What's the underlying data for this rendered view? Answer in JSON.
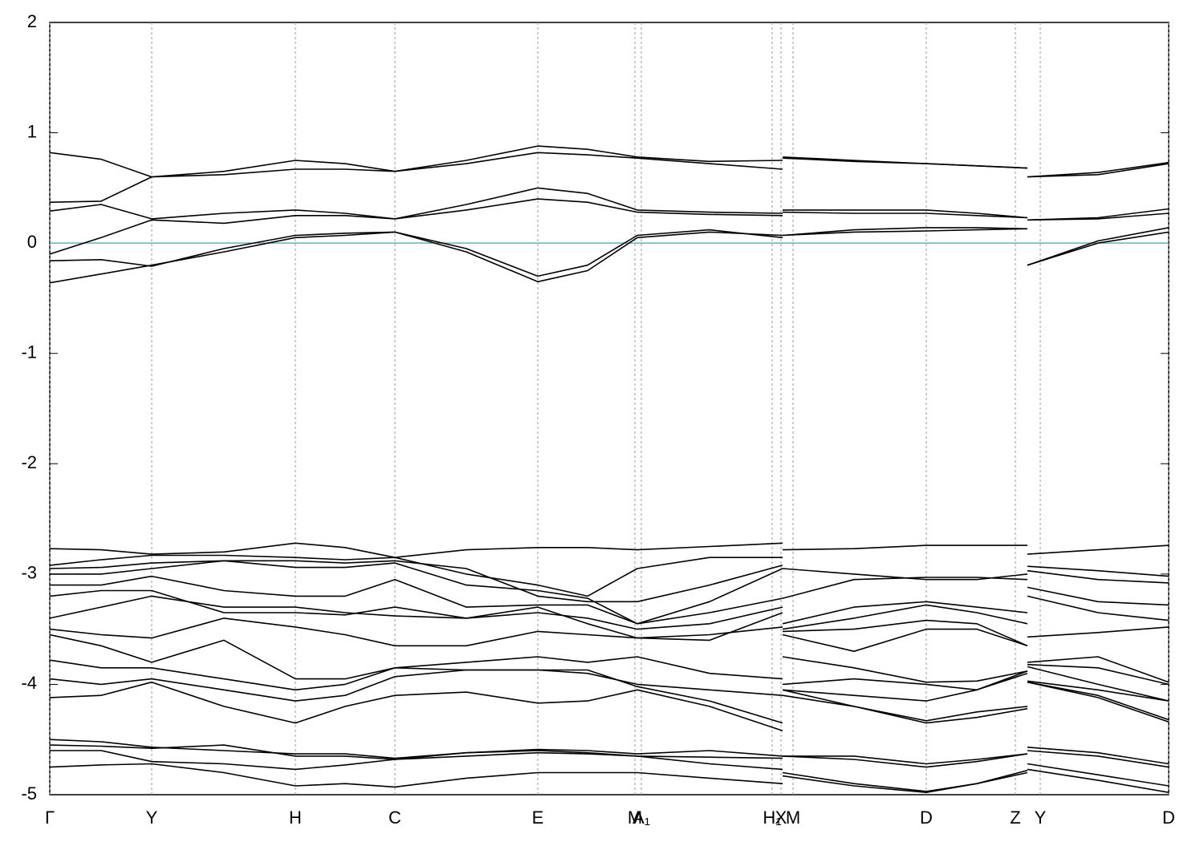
{
  "chart_data": {
    "type": "line",
    "color": "#000000",
    "fermi_level": 0,
    "fermi_color": "#5ab4c8",
    "x": [
      0,
      64,
      127,
      217,
      306,
      368,
      430,
      519,
      608,
      670,
      732,
      822,
      913,
      913,
      913,
      1002,
      1092,
      1155,
      1218,
      1218,
      1218,
      1306,
      1394
    ],
    "xlim": [
      0,
      1394
    ],
    "xticks": [
      {
        "value": 0,
        "label": "Γ"
      },
      {
        "value": 127,
        "label": "Y"
      },
      {
        "value": 306,
        "label": "H"
      },
      {
        "value": 430,
        "label": "C"
      },
      {
        "value": 608,
        "label": "E"
      },
      {
        "value": 729,
        "label": "M"
      },
      {
        "value": 737,
        "label": "A₁"
      },
      {
        "value": 900,
        "label": "H₁"
      },
      {
        "value": 911,
        "label": "X"
      },
      {
        "value": 926,
        "label": "M"
      },
      {
        "value": 1092,
        "label": "D"
      },
      {
        "value": 1203,
        "label": "Z"
      },
      {
        "value": 1234,
        "label": "Y"
      },
      {
        "value": 1394,
        "label": "D"
      }
    ],
    "ylim": [
      -5,
      2
    ],
    "yticks": [
      -5,
      -4,
      -3,
      -2,
      -1,
      0,
      1,
      2
    ],
    "grid": true,
    "series": [
      {
        "values": [
          0.82,
          0.76,
          0.6,
          0.65,
          0.75,
          0.72,
          0.65,
          0.75,
          0.88,
          0.85,
          0.78,
          0.74,
          0.75,
          null,
          0.78,
          0.75,
          0.72,
          0.7,
          0.68,
          null,
          0.6,
          0.64,
          0.73
        ]
      },
      {
        "values": [
          0.37,
          0.38,
          0.6,
          0.62,
          0.67,
          0.67,
          0.65,
          0.72,
          0.82,
          0.8,
          0.77,
          0.72,
          0.67,
          null,
          0.77,
          0.74,
          0.72,
          0.7,
          0.68,
          null,
          0.6,
          0.62,
          0.72
        ]
      },
      {
        "values": [
          0.29,
          0.35,
          0.22,
          0.27,
          0.3,
          0.27,
          0.22,
          0.35,
          0.5,
          0.45,
          0.3,
          0.28,
          0.27,
          null,
          0.3,
          0.3,
          0.3,
          0.27,
          0.23,
          null,
          0.21,
          0.23,
          0.31
        ]
      },
      {
        "values": [
          -0.1,
          0.05,
          0.21,
          0.18,
          0.25,
          0.25,
          0.22,
          0.3,
          0.4,
          0.37,
          0.28,
          0.26,
          0.25,
          null,
          0.28,
          0.27,
          0.27,
          0.25,
          0.23,
          null,
          0.21,
          0.22,
          0.27
        ]
      },
      {
        "values": [
          -0.16,
          -0.15,
          -0.21,
          -0.05,
          0.07,
          0.09,
          0.1,
          -0.05,
          -0.3,
          -0.2,
          0.07,
          0.12,
          0.05,
          null,
          0.07,
          0.12,
          0.14,
          0.14,
          0.13,
          null,
          -0.2,
          0.02,
          0.14
        ]
      },
      {
        "values": [
          -0.36,
          -0.28,
          -0.2,
          -0.08,
          0.05,
          0.07,
          0.1,
          -0.08,
          -0.35,
          -0.25,
          0.05,
          0.1,
          0.07,
          null,
          0.07,
          0.1,
          0.11,
          0.12,
          0.13,
          null,
          -0.2,
          0.0,
          0.1
        ]
      },
      {
        "values": [
          -2.77,
          -2.78,
          -2.82,
          -2.8,
          -2.72,
          -2.76,
          -2.85,
          -2.78,
          -2.76,
          -2.76,
          -2.78,
          -2.75,
          -2.72,
          null,
          -2.78,
          -2.77,
          -2.74,
          -2.74,
          -2.74,
          null,
          -2.82,
          -2.78,
          -2.74
        ]
      },
      {
        "values": [
          -2.92,
          -2.87,
          -2.83,
          -2.83,
          -2.85,
          -2.87,
          -2.85,
          -3.0,
          -3.1,
          -3.2,
          -2.95,
          -2.85,
          -2.85,
          null,
          -2.95,
          -3.0,
          -3.05,
          -3.05,
          -3.0,
          null,
          -2.93,
          -2.97,
          -3.02
        ]
      },
      {
        "values": [
          -2.95,
          -2.94,
          -2.9,
          -2.88,
          -2.88,
          -2.9,
          -2.88,
          -2.95,
          -3.2,
          -3.25,
          -3.25,
          -3.1,
          -2.92,
          null,
          -3.22,
          -3.05,
          -3.03,
          -3.03,
          -3.05,
          null,
          -2.97,
          -3.05,
          -3.08
        ]
      },
      {
        "values": [
          -3.0,
          -3.0,
          -2.95,
          -2.88,
          -2.94,
          -2.94,
          -2.9,
          -3.1,
          -3.15,
          -3.22,
          -3.45,
          -3.25,
          -2.95,
          null,
          -3.45,
          -3.3,
          -3.25,
          -3.3,
          -3.35,
          null,
          -3.12,
          -3.25,
          -3.28
        ]
      },
      {
        "values": [
          -3.1,
          -3.1,
          -3.02,
          -3.15,
          -3.2,
          -3.2,
          -3.05,
          -3.3,
          -3.28,
          -3.28,
          -3.45,
          -3.35,
          -3.22,
          null,
          -3.5,
          -3.4,
          -3.28,
          -3.35,
          -3.45,
          null,
          -3.2,
          -3.35,
          -3.42
        ]
      },
      {
        "values": [
          -3.2,
          -3.15,
          -3.15,
          -3.35,
          -3.35,
          -3.37,
          -3.3,
          -3.4,
          -3.35,
          -3.4,
          -3.5,
          -3.45,
          -3.3,
          null,
          -3.52,
          -3.5,
          -3.42,
          -3.45,
          -3.65,
          null,
          -3.57,
          -3.53,
          -3.48
        ]
      },
      {
        "values": [
          -3.4,
          -3.3,
          -3.2,
          -3.3,
          -3.3,
          -3.35,
          -3.38,
          -3.4,
          -3.3,
          -3.45,
          -3.58,
          -3.6,
          -3.35,
          null,
          -3.55,
          -3.7,
          -3.5,
          -3.5,
          -3.65,
          null,
          -3.8,
          -3.75,
          -3.98
        ]
      },
      {
        "values": [
          -3.5,
          -3.55,
          -3.58,
          -3.4,
          -3.48,
          -3.55,
          -3.65,
          -3.65,
          -3.52,
          -3.55,
          -3.58,
          -3.55,
          -3.48,
          null,
          -3.75,
          -3.85,
          -3.98,
          -3.97,
          -3.88,
          null,
          -3.82,
          -3.85,
          -4.0
        ]
      },
      {
        "values": [
          -3.55,
          -3.65,
          -3.8,
          -3.6,
          -3.95,
          -3.95,
          -3.85,
          -3.8,
          -3.75,
          -3.8,
          -3.75,
          -3.9,
          -3.95,
          null,
          -4.0,
          -3.95,
          -4.0,
          -4.05,
          -3.9,
          null,
          -3.84,
          -4.0,
          -4.15
        ]
      },
      {
        "values": [
          -3.78,
          -3.85,
          -3.85,
          -3.95,
          -4.05,
          -4.0,
          -3.85,
          -3.87,
          -3.87,
          -3.9,
          -4.0,
          -4.05,
          -4.1,
          null,
          -4.05,
          -4.1,
          -4.15,
          -4.05,
          -3.88,
          null,
          -3.97,
          -4.05,
          -4.15
        ]
      },
      {
        "values": [
          -3.95,
          -4.0,
          -3.95,
          -4.05,
          -4.15,
          -4.1,
          -3.93,
          -3.87,
          -3.87,
          -3.87,
          -4.02,
          -4.15,
          -4.35,
          null,
          -4.05,
          -4.2,
          -4.35,
          -4.3,
          -4.22,
          null,
          -3.98,
          -4.1,
          -4.32
        ]
      },
      {
        "values": [
          -4.12,
          -4.1,
          -3.98,
          -4.2,
          -4.35,
          -4.2,
          -4.1,
          -4.07,
          -4.17,
          -4.15,
          -4.05,
          -4.2,
          -4.42,
          null,
          -4.1,
          -4.2,
          -4.33,
          -4.25,
          -4.2,
          null,
          -3.98,
          -4.12,
          -4.34
        ]
      },
      {
        "values": [
          -4.5,
          -4.52,
          -4.57,
          -4.6,
          -4.63,
          -4.63,
          -4.67,
          -4.62,
          -4.59,
          -4.6,
          -4.63,
          -4.6,
          -4.65,
          null,
          -4.65,
          -4.65,
          -4.72,
          -4.68,
          -4.63,
          null,
          -4.57,
          -4.62,
          -4.72
        ]
      },
      {
        "values": [
          -4.55,
          -4.56,
          -4.58,
          -4.55,
          -4.65,
          -4.65,
          -4.68,
          -4.62,
          -4.6,
          -4.62,
          -4.65,
          -4.66,
          -4.67,
          null,
          -4.65,
          -4.68,
          -4.75,
          -4.7,
          -4.63,
          null,
          -4.6,
          -4.65,
          -4.75
        ]
      },
      {
        "values": [
          -4.6,
          -4.6,
          -4.7,
          -4.72,
          -4.77,
          -4.73,
          -4.68,
          -4.65,
          -4.62,
          -4.63,
          -4.65,
          -4.72,
          -4.77,
          null,
          -4.8,
          -4.9,
          -4.97,
          -4.9,
          -4.8,
          null,
          -4.72,
          -4.82,
          -4.92
        ]
      },
      {
        "values": [
          -4.75,
          -4.73,
          -4.72,
          -4.8,
          -4.92,
          -4.9,
          -4.93,
          -4.85,
          -4.8,
          -4.8,
          -4.8,
          -4.85,
          -4.9,
          null,
          -4.83,
          -4.92,
          -4.98,
          -4.9,
          -4.78,
          null,
          -4.77,
          -4.87,
          -4.98
        ]
      }
    ]
  }
}
